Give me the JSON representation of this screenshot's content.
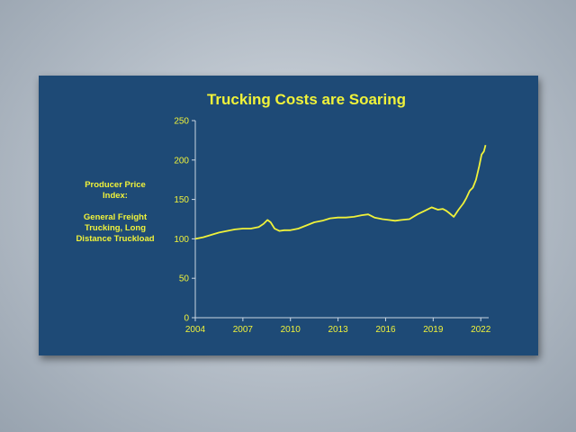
{
  "chart_data": {
    "type": "line",
    "title": "Trucking Costs are Soaring",
    "ylabel_lines": [
      "Producer Price",
      "Index:",
      "",
      "General Freight",
      "Trucking, Long",
      "Distance Truckload"
    ],
    "xlim": [
      2004,
      2022.5
    ],
    "ylim": [
      0,
      250
    ],
    "xticks": [
      2004,
      2007,
      2010,
      2013,
      2016,
      2019,
      2022
    ],
    "yticks": [
      0,
      50,
      100,
      150,
      200,
      250
    ],
    "grid": false,
    "series": [
      {
        "color": "#f0f23a",
        "points": [
          [
            2004.0,
            100
          ],
          [
            2004.5,
            102
          ],
          [
            2005.0,
            105
          ],
          [
            2005.5,
            108
          ],
          [
            2006.0,
            110
          ],
          [
            2006.5,
            112
          ],
          [
            2007.0,
            113
          ],
          [
            2007.5,
            113
          ],
          [
            2008.0,
            115
          ],
          [
            2008.3,
            119
          ],
          [
            2008.55,
            124
          ],
          [
            2008.75,
            121
          ],
          [
            2009.0,
            113
          ],
          [
            2009.3,
            110
          ],
          [
            2009.6,
            111
          ],
          [
            2010.0,
            111
          ],
          [
            2010.5,
            113
          ],
          [
            2011.0,
            117
          ],
          [
            2011.5,
            121
          ],
          [
            2012.0,
            123
          ],
          [
            2012.5,
            126
          ],
          [
            2013.0,
            127
          ],
          [
            2013.5,
            127
          ],
          [
            2014.0,
            128
          ],
          [
            2014.5,
            130
          ],
          [
            2014.9,
            131
          ],
          [
            2015.3,
            127
          ],
          [
            2015.8,
            125
          ],
          [
            2016.2,
            124
          ],
          [
            2016.6,
            123
          ],
          [
            2017.0,
            124
          ],
          [
            2017.5,
            125
          ],
          [
            2018.0,
            131
          ],
          [
            2018.5,
            136
          ],
          [
            2018.9,
            140
          ],
          [
            2019.3,
            137
          ],
          [
            2019.6,
            138
          ],
          [
            2019.8,
            136
          ],
          [
            2020.0,
            133
          ],
          [
            2020.3,
            128
          ],
          [
            2020.6,
            137
          ],
          [
            2020.9,
            145
          ],
          [
            2021.1,
            152
          ],
          [
            2021.3,
            161
          ],
          [
            2021.5,
            165
          ],
          [
            2021.7,
            175
          ],
          [
            2021.9,
            192
          ],
          [
            2022.05,
            207
          ],
          [
            2022.2,
            211
          ],
          [
            2022.3,
            219
          ]
        ]
      }
    ]
  }
}
